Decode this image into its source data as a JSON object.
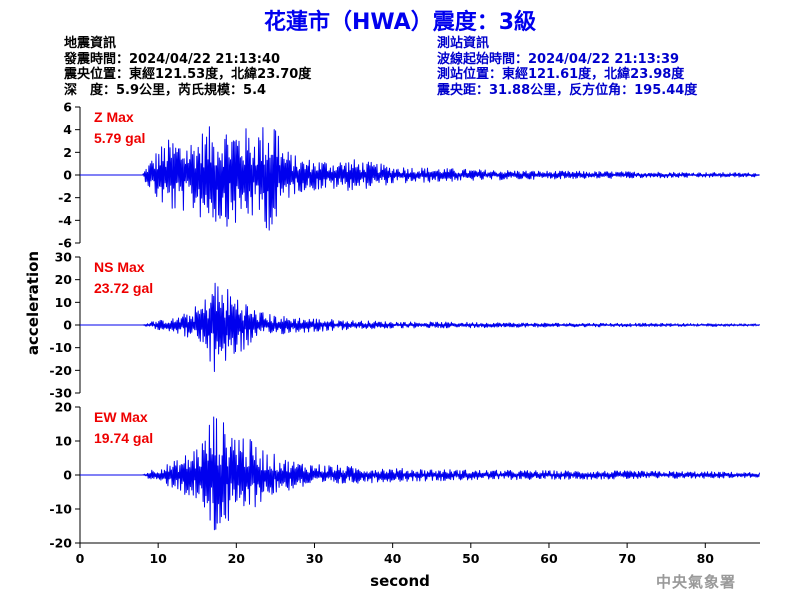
{
  "title": "花蓮市（HWA）震度：3級",
  "quake_info": {
    "heading": "地震資訊",
    "origin_time": "發震時間：2024/04/22 21:13:40",
    "epicenter": "震央位置：東經121.53度，北緯23.70度",
    "depth_magnitude": "深　度：5.9公里，芮氏規模：5.4"
  },
  "station_info": {
    "heading": "測站資訊",
    "wave_start": "波線起始時間：2024/04/22 21:13:39",
    "station_location": "測站位置：東經121.61度，北緯23.98度",
    "distance_azimuth": "震央距：31.88公里，反方位角：195.44度"
  },
  "watermark": "中央氣象署",
  "colors": {
    "trace": "#0000ee",
    "label": "#ee0000",
    "title": "#0000ee",
    "axis": "#000000"
  },
  "chart_data": {
    "type": "line",
    "xlabel": "second",
    "ylabel": "acceleration",
    "xlim": [
      0,
      87
    ],
    "xticks": [
      0,
      10,
      20,
      30,
      40,
      50,
      60,
      70,
      80
    ],
    "grid": false,
    "panels": [
      {
        "component": "Z",
        "label": "Z Max",
        "max_text": "5.79 gal",
        "max_gal": 5.79,
        "ylim": [
          -6,
          6
        ],
        "yticks": [
          6,
          4,
          2,
          0,
          -2,
          -4,
          -6
        ],
        "envelope": [
          [
            0,
            0
          ],
          [
            8,
            0.02
          ],
          [
            8.5,
            0.8
          ],
          [
            10,
            2.5
          ],
          [
            12,
            3.5
          ],
          [
            14,
            3.2
          ],
          [
            16,
            4.2
          ],
          [
            18,
            4.5
          ],
          [
            20,
            4.6
          ],
          [
            22,
            4.0
          ],
          [
            24,
            4.8
          ],
          [
            25,
            5.79
          ],
          [
            26,
            2.5
          ],
          [
            28,
            1.5
          ],
          [
            32,
            1.3
          ],
          [
            35,
            1.4
          ],
          [
            40,
            0.8
          ],
          [
            50,
            0.5
          ],
          [
            60,
            0.35
          ],
          [
            70,
            0.3
          ],
          [
            87,
            0.18
          ]
        ]
      },
      {
        "component": "NS",
        "label": "NS Max",
        "max_text": "23.72 gal",
        "max_gal": 23.72,
        "ylim": [
          -30,
          30
        ],
        "yticks": [
          30,
          20,
          10,
          0,
          -10,
          -20,
          -30
        ],
        "envelope": [
          [
            0,
            0
          ],
          [
            8,
            0.05
          ],
          [
            9,
            1.5
          ],
          [
            12,
            3
          ],
          [
            14,
            6
          ],
          [
            16,
            12
          ],
          [
            17,
            23.72
          ],
          [
            18,
            18
          ],
          [
            20,
            15
          ],
          [
            22,
            8
          ],
          [
            24,
            5
          ],
          [
            26,
            4
          ],
          [
            28,
            3.5
          ],
          [
            30,
            3
          ],
          [
            35,
            2
          ],
          [
            40,
            1.5
          ],
          [
            50,
            1.2
          ],
          [
            60,
            0.9
          ],
          [
            70,
            0.8
          ],
          [
            87,
            0.5
          ]
        ]
      },
      {
        "component": "EW",
        "label": "EW Max",
        "max_text": "19.74 gal",
        "max_gal": 19.74,
        "ylim": [
          -20,
          20
        ],
        "yticks": [
          20,
          10,
          0,
          -10,
          -20
        ],
        "envelope": [
          [
            0,
            0
          ],
          [
            8,
            0.05
          ],
          [
            9,
            1.5
          ],
          [
            12,
            4
          ],
          [
            14,
            7
          ],
          [
            16,
            12
          ],
          [
            17,
            19.74
          ],
          [
            18,
            16
          ],
          [
            20,
            15
          ],
          [
            22,
            10
          ],
          [
            24,
            7
          ],
          [
            26,
            5
          ],
          [
            28,
            4
          ],
          [
            30,
            3.5
          ],
          [
            35,
            2.5
          ],
          [
            40,
            2
          ],
          [
            50,
            1.5
          ],
          [
            60,
            1.3
          ],
          [
            70,
            1.2
          ],
          [
            80,
            1
          ],
          [
            87,
            0.7
          ]
        ]
      }
    ]
  }
}
